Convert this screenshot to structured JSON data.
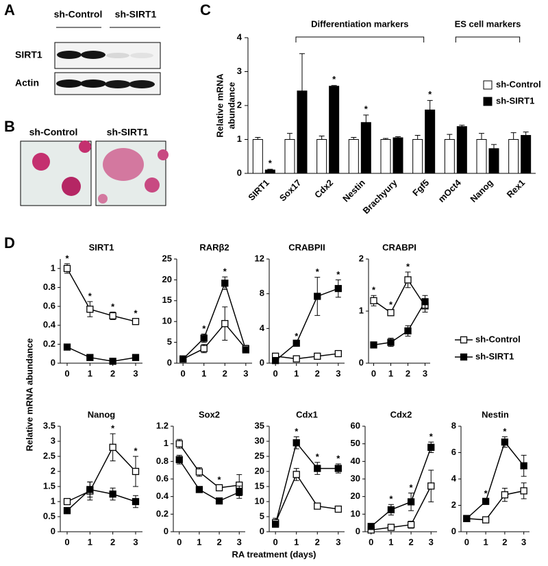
{
  "figure": {
    "panel_labels": [
      "A",
      "B",
      "C",
      "D"
    ],
    "blot": {
      "columns": [
        "sh-Control",
        "sh-SIRT1"
      ],
      "rows": [
        "SIRT1",
        "Actin"
      ]
    },
    "staining": {
      "columns": [
        "sh-Control",
        "sh-SIRT1"
      ]
    }
  },
  "chart_data": [
    {
      "type": "bar",
      "ylabel": [
        "Relative mRNA",
        "abundance"
      ],
      "categories": [
        "SIRT1",
        "Sox17",
        "Cdx2",
        "Nestin",
        "Brachyury",
        "Fgf5",
        "mOct4",
        "Nanog",
        "Rex1"
      ],
      "series": [
        {
          "name": "sh-Control",
          "color": "#ffffff",
          "values": [
            1,
            1,
            1,
            1,
            1,
            1,
            1,
            1,
            1
          ],
          "errors": [
            0.06,
            0.18,
            0.1,
            0.06,
            0.03,
            0.12,
            0.15,
            0.18,
            0.2
          ]
        },
        {
          "name": "sh-SIRT1",
          "color": "#000000",
          "values": [
            0.1,
            2.43,
            2.57,
            1.5,
            1.05,
            1.87,
            1.38,
            0.73,
            1.12
          ],
          "errors": [
            0.02,
            1.1,
            0.02,
            0.22,
            0.03,
            0.28,
            0.04,
            0.12,
            0.1
          ],
          "significance": [
            "*",
            null,
            "*",
            "*",
            null,
            "*",
            null,
            null,
            null
          ]
        }
      ],
      "ylim": [
        0,
        4
      ],
      "yticks": [
        0,
        1,
        2,
        3,
        4
      ],
      "legend": "right",
      "groups": [
        {
          "label": "Differentiation markers",
          "start": "Sox17",
          "end": "Fgf5"
        },
        {
          "label": "ES cell markers",
          "start": "mOct4",
          "end": "Rex1"
        }
      ]
    },
    {
      "type": "line",
      "xlabel": "RA treatment (days)",
      "ylabel": "Relative mRNA abundance",
      "x": [
        0,
        1,
        2,
        3
      ],
      "xlim": [
        -0.3,
        3.3
      ],
      "xticks": [
        0,
        1,
        2,
        3
      ],
      "legend": "right",
      "series": [
        {
          "name": "sh-Control",
          "color": "#ffffff"
        },
        {
          "name": "sh-SIRT1",
          "color": "#000000"
        }
      ],
      "subplots": [
        {
          "title": "SIRT1",
          "ylim": [
            0,
            1.1
          ],
          "yticks": [
            0,
            0.2,
            0.4,
            0.6,
            0.8,
            1
          ],
          "significance": [
            "*",
            "*",
            "*",
            "*"
          ],
          "series": [
            {
              "values": [
                1,
                0.57,
                0.5,
                0.44
              ],
              "errors": [
                0.05,
                0.08,
                0.04,
                0.03
              ]
            },
            {
              "values": [
                0.17,
                0.06,
                0.02,
                0.06
              ],
              "errors": [
                0.02,
                0.02,
                0.02,
                0.02
              ]
            }
          ]
        },
        {
          "title": "RARβ2",
          "ylim": [
            0,
            25
          ],
          "yticks": [
            0,
            5,
            10,
            15,
            20,
            25
          ],
          "significance": [
            null,
            "*",
            "*",
            null
          ],
          "series": [
            {
              "values": [
                1,
                3.5,
                9.5,
                3.5
              ],
              "errors": [
                0.3,
                1,
                4,
                0.8
              ]
            },
            {
              "values": [
                1,
                6,
                19.2,
                3.2
              ],
              "errors": [
                0.3,
                1,
                1.5,
                0.5
              ]
            }
          ]
        },
        {
          "title": "CRABPII",
          "ylim": [
            0,
            12
          ],
          "yticks": [
            0,
            4,
            8,
            12
          ],
          "significance": [
            null,
            "*",
            "*",
            "*"
          ],
          "series": [
            {
              "values": [
                0.8,
                0.5,
                0.8,
                1.1
              ],
              "errors": [
                0.2,
                0.2,
                0.2,
                0.2
              ]
            },
            {
              "values": [
                0.3,
                2.3,
                7.7,
                8.6
              ],
              "errors": [
                0.2,
                0.2,
                2.2,
                1
              ]
            }
          ]
        },
        {
          "title": "CRABPI",
          "ylim": [
            0,
            2
          ],
          "yticks": [
            0,
            1,
            2
          ],
          "significance": [
            "*",
            "*",
            "*",
            null
          ],
          "series": [
            {
              "values": [
                1.2,
                0.97,
                1.6,
                1.1
              ],
              "errors": [
                0.1,
                0.05,
                0.15,
                0.12
              ]
            },
            {
              "values": [
                0.35,
                0.4,
                0.62,
                1.18
              ],
              "errors": [
                0.03,
                0.08,
                0.1,
                0.12
              ]
            }
          ]
        },
        {
          "title": "Nanog",
          "ylim": [
            0,
            3.5
          ],
          "yticks": [
            0,
            0.5,
            1,
            1.5,
            2,
            2.5,
            3,
            3.5
          ],
          "significance": [
            null,
            null,
            "*",
            "*"
          ],
          "series": [
            {
              "values": [
                1,
                1.35,
                2.8,
                2
              ],
              "errors": [
                0.1,
                0.3,
                0.45,
                0.5
              ]
            },
            {
              "values": [
                0.7,
                1.4,
                1.25,
                1
              ],
              "errors": [
                0.1,
                0.25,
                0.2,
                0.2
              ]
            }
          ]
        },
        {
          "title": "Sox2",
          "ylim": [
            0,
            1.2
          ],
          "yticks": [
            0,
            0.2,
            0.4,
            0.6,
            0.8,
            1,
            1.2
          ],
          "significance": [
            null,
            null,
            "*",
            null
          ],
          "series": [
            {
              "values": [
                1,
                0.68,
                0.5,
                0.53
              ],
              "errors": [
                0.05,
                0.05,
                0.03,
                0.12
              ]
            },
            {
              "values": [
                0.82,
                0.48,
                0.35,
                0.45
              ],
              "errors": [
                0.05,
                0.02,
                0.02,
                0.07
              ]
            }
          ]
        },
        {
          "title": "Cdx1",
          "ylim": [
            0,
            35
          ],
          "yticks": [
            0,
            5,
            10,
            15,
            20,
            25,
            30,
            35
          ],
          "significance": [
            null,
            "*",
            "*",
            "*"
          ],
          "series": [
            {
              "values": [
                3,
                19,
                8.5,
                7.5
              ],
              "errors": [
                1.5,
                2,
                0.5,
                0.5
              ]
            },
            {
              "values": [
                2.5,
                29.5,
                21,
                21
              ],
              "errors": [
                1,
                2,
                2,
                1.5
              ]
            }
          ]
        },
        {
          "title": "Cdx2",
          "ylim": [
            0,
            60
          ],
          "yticks": [
            0,
            10,
            20,
            30,
            40,
            50,
            60
          ],
          "significance": [
            null,
            "*",
            "*",
            "*"
          ],
          "series": [
            {
              "values": [
                1,
                2.5,
                4,
                26
              ],
              "errors": [
                0.5,
                1.5,
                2,
                9
              ]
            },
            {
              "values": [
                3,
                12.5,
                17,
                48
              ],
              "errors": [
                1,
                3,
                5,
                3
              ]
            }
          ]
        },
        {
          "title": "Nestin",
          "ylim": [
            0,
            8
          ],
          "yticks": [
            0,
            2,
            4,
            6,
            8
          ],
          "significance": [
            null,
            "*",
            "*",
            null
          ],
          "series": [
            {
              "values": [
                1,
                0.9,
                2.8,
                3.1
              ],
              "errors": [
                0.2,
                0.1,
                0.5,
                0.6
              ]
            },
            {
              "values": [
                1,
                2.3,
                6.8,
                5
              ],
              "errors": [
                0.1,
                0.2,
                0.4,
                0.8
              ]
            }
          ]
        }
      ]
    }
  ]
}
